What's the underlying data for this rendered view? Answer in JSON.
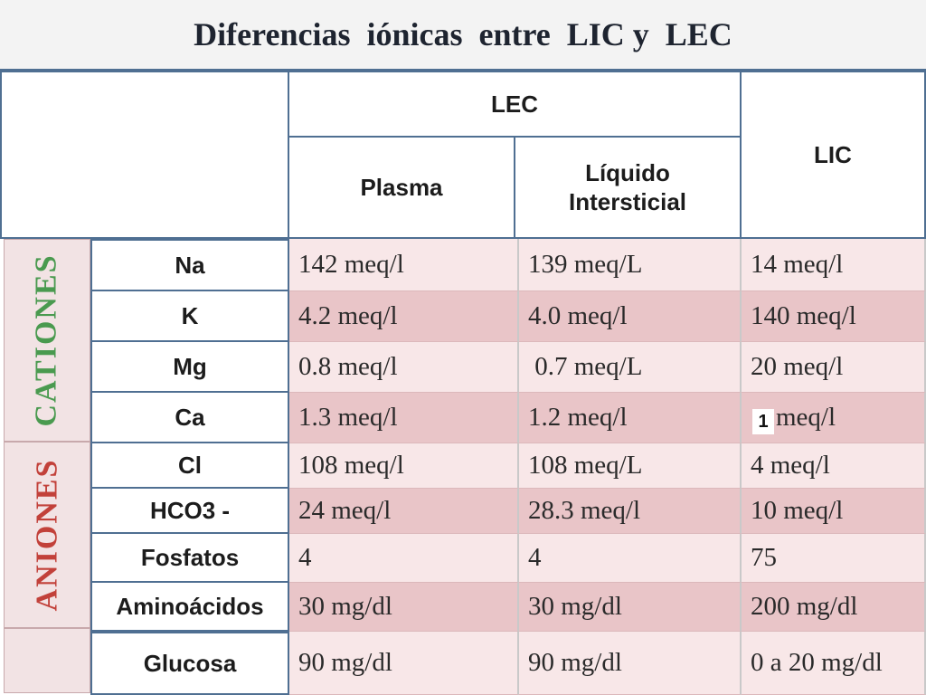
{
  "title": "Diferencias  iónicas  entre  LIC y  LEC",
  "header": {
    "lec": "LEC",
    "lic": "LIC",
    "plasma": "Plasma",
    "intersticial_line1": "Líquido",
    "intersticial_line2": "Intersticial"
  },
  "groups": {
    "cationes": "CATIONES",
    "aniones": "ANIONES"
  },
  "rows": [
    {
      "label": "Na",
      "plasma": "142 meq/l",
      "intersticial": "139 meq/L",
      "lic": "14 meq/l"
    },
    {
      "label": "K",
      "plasma": "4.2 meq/l",
      "intersticial": "4.0 meq/l",
      "lic": "140 meq/l"
    },
    {
      "label": "Mg",
      "plasma": "0.8 meq/l",
      "intersticial": " 0.7 meq/L",
      "lic": "20 meq/l"
    },
    {
      "label": "Ca",
      "plasma": "1.3 meq/l",
      "intersticial": "1.2 meq/l",
      "lic": "meq/l"
    },
    {
      "label": "Cl",
      "plasma": "108 meq/l",
      "intersticial": "108 meq/L",
      "lic": "4 meq/l"
    },
    {
      "label": "HCO3 -",
      "plasma": "24 meq/l",
      "intersticial": "28.3 meq/l",
      "lic": "10 meq/l"
    },
    {
      "label": "Fosfatos",
      "plasma": "4",
      "intersticial": "4",
      "lic": "75"
    },
    {
      "label": "Aminoácidos",
      "plasma": "30 mg/dl",
      "intersticial": "30 mg/dl",
      "lic": "200 mg/dl"
    },
    {
      "label": "Glucosa",
      "plasma": "90 mg/dl",
      "intersticial": "90 mg/dl",
      "lic": "0 a 20 mg/dl"
    }
  ],
  "ca_lic_prefix": "1",
  "colors": {
    "border": "#4f6f92",
    "cationes_text": "#4a9a4f",
    "aniones_text": "#c2413a",
    "row_light": "#f8e7e8",
    "row_dark": "#e9c5c8"
  }
}
